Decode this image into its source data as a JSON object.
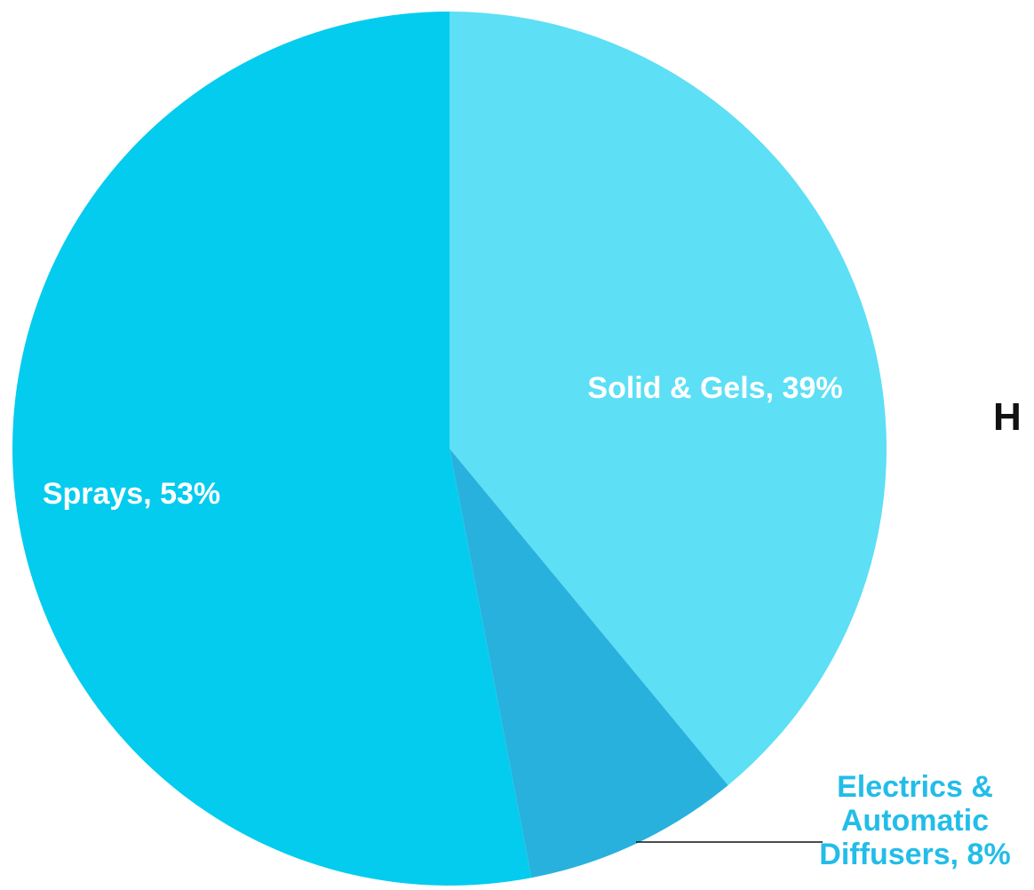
{
  "chart_data": {
    "type": "pie",
    "slices": [
      {
        "name": "Solid & Gels",
        "value": 39,
        "label": "Solid & Gels, 39%",
        "label_lines": [
          "Solid & Gels, 39%"
        ],
        "color": "#5ddff5",
        "label_color": "#ffffff"
      },
      {
        "name": "Electrics & Automatic Diffusers",
        "value": 8,
        "label": "Electrics & Automatic Diffusers, 8%",
        "label_lines": [
          "Electrics &",
          "Automatic",
          "Diffusers, 8%"
        ],
        "color": "#29b1dd",
        "label_color": "#22bde8"
      },
      {
        "name": "Sprays",
        "value": 53,
        "label": "Sprays, 53%",
        "label_lines": [
          "Sprays, 53%"
        ],
        "color": "#04ccee",
        "label_color": "#ffffff"
      }
    ],
    "start": "12 o'clock",
    "direction": "clockwise",
    "legend": "none"
  },
  "side_text": "H"
}
